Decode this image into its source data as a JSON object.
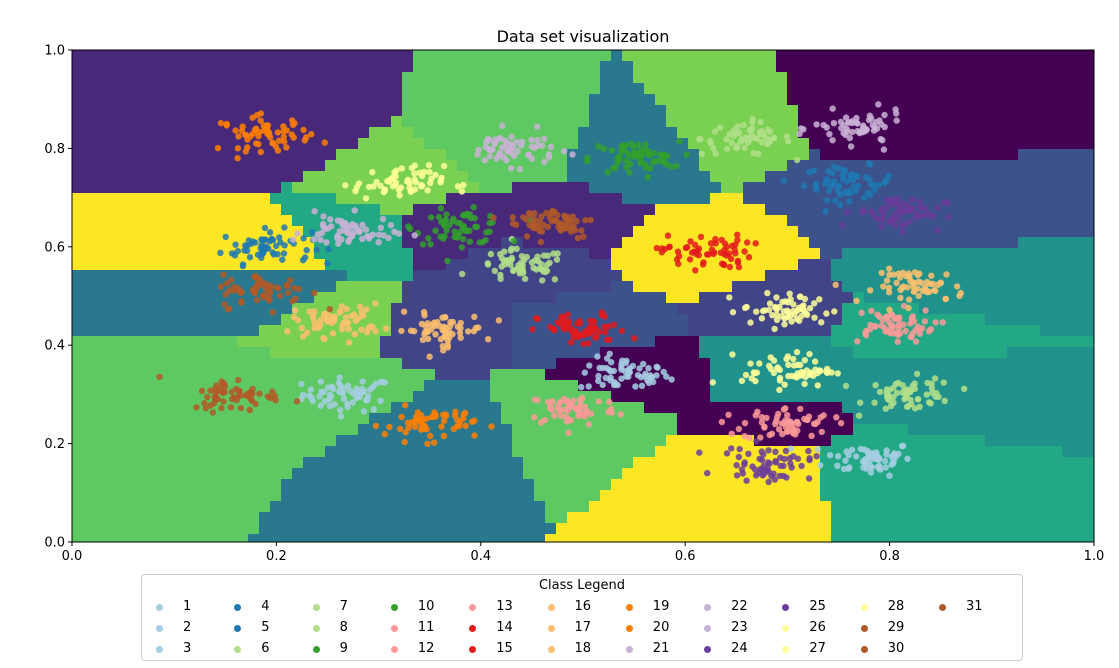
{
  "chart_data": {
    "type": "scatter",
    "title": "Data set visualization",
    "xlabel": "",
    "ylabel": "",
    "xlim": [
      0.0,
      1.0
    ],
    "ylim": [
      0.0,
      1.0
    ],
    "xticks": [
      "0.0",
      "0.2",
      "0.4",
      "0.6",
      "0.8",
      "1.0"
    ],
    "yticks": [
      "0.0",
      "0.2",
      "0.4",
      "0.6",
      "0.8",
      "1.0"
    ],
    "grid": false,
    "background": "decision regions colored with viridis colormap",
    "legend": {
      "title": "Class Legend",
      "placement": "bottom-center",
      "columns": 11
    },
    "series": [
      {
        "name": "1",
        "color": "#a6cee3",
        "center": [
          0.27,
          0.3
        ]
      },
      {
        "name": "2",
        "color": "#a6cee3",
        "center": [
          0.54,
          0.34
        ]
      },
      {
        "name": "3",
        "color": "#a6cee3",
        "center": [
          0.78,
          0.17
        ]
      },
      {
        "name": "4",
        "color": "#1f78b4",
        "center": [
          0.19,
          0.6
        ]
      },
      {
        "name": "5",
        "color": "#1f78b4",
        "center": [
          0.76,
          0.73
        ]
      },
      {
        "name": "6",
        "color": "#b2df8a",
        "center": [
          0.66,
          0.82
        ]
      },
      {
        "name": "7",
        "color": "#b2df8a",
        "center": [
          0.44,
          0.56
        ]
      },
      {
        "name": "8",
        "color": "#b2df8a",
        "center": [
          0.82,
          0.3
        ]
      },
      {
        "name": "9",
        "color": "#33a02c",
        "center": [
          0.38,
          0.64
        ]
      },
      {
        "name": "10",
        "color": "#33a02c",
        "center": [
          0.55,
          0.78
        ]
      },
      {
        "name": "11",
        "color": "#fb9a99",
        "center": [
          0.49,
          0.27
        ]
      },
      {
        "name": "12",
        "color": "#fb9a99",
        "center": [
          0.7,
          0.24
        ]
      },
      {
        "name": "13",
        "color": "#fb9a99",
        "center": [
          0.8,
          0.44
        ]
      },
      {
        "name": "14",
        "color": "#e31a1c",
        "center": [
          0.62,
          0.59
        ]
      },
      {
        "name": "15",
        "color": "#e31a1c",
        "center": [
          0.5,
          0.43
        ]
      },
      {
        "name": "16",
        "color": "#fdbf6f",
        "center": [
          0.26,
          0.45
        ]
      },
      {
        "name": "17",
        "color": "#fdbf6f",
        "center": [
          0.36,
          0.43
        ]
      },
      {
        "name": "18",
        "color": "#fdbf6f",
        "center": [
          0.83,
          0.52
        ]
      },
      {
        "name": "19",
        "color": "#ff7f00",
        "center": [
          0.19,
          0.83
        ]
      },
      {
        "name": "20",
        "color": "#ff7f00",
        "center": [
          0.35,
          0.24
        ]
      },
      {
        "name": "21",
        "color": "#cab2d6",
        "center": [
          0.43,
          0.8
        ]
      },
      {
        "name": "22",
        "color": "#cab2d6",
        "center": [
          0.77,
          0.84
        ]
      },
      {
        "name": "23",
        "color": "#cab2d6",
        "center": [
          0.27,
          0.63
        ]
      },
      {
        "name": "24",
        "color": "#6a3d9a",
        "center": [
          0.68,
          0.16
        ]
      },
      {
        "name": "25",
        "color": "#6a3d9a",
        "center": [
          0.81,
          0.67
        ]
      },
      {
        "name": "26",
        "color": "#ffff99",
        "center": [
          0.32,
          0.73
        ]
      },
      {
        "name": "27",
        "color": "#ffff99",
        "center": [
          0.7,
          0.47
        ]
      },
      {
        "name": "28",
        "color": "#ffff99",
        "center": [
          0.7,
          0.35
        ]
      },
      {
        "name": "29",
        "color": "#b15928",
        "center": [
          0.47,
          0.65
        ]
      },
      {
        "name": "30",
        "color": "#b15928",
        "center": [
          0.19,
          0.51
        ]
      },
      {
        "name": "31",
        "color": "#b15928",
        "center": [
          0.16,
          0.3
        ]
      }
    ]
  }
}
